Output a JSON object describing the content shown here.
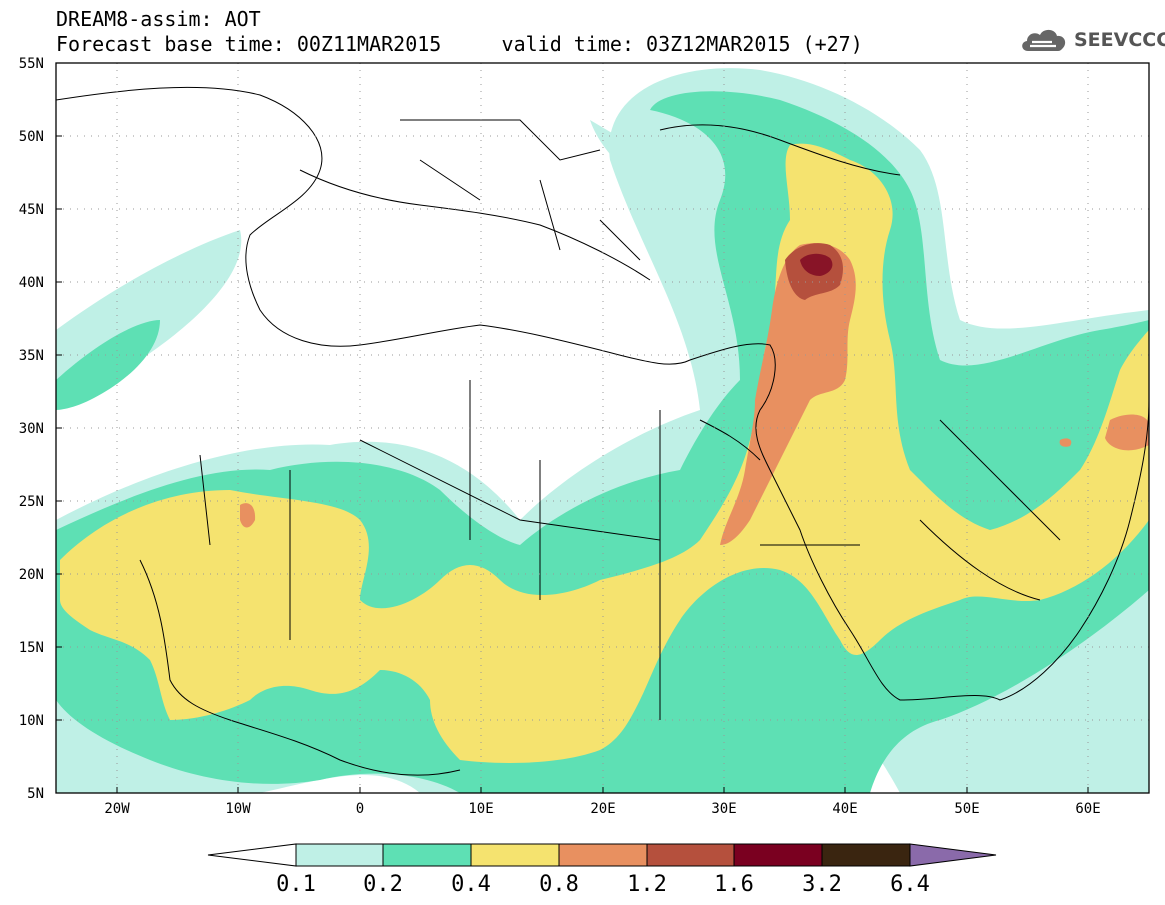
{
  "header": {
    "model_line": "DREAM8-assim: AOT",
    "base_time": "Forecast base time: 00Z11MAR2015",
    "valid_time": "valid time: 03Z12MAR2015 (+27)",
    "logo_text": "SEEVCCC",
    "logo_icon": "cloud-logo-icon"
  },
  "map": {
    "lat_labels": [
      "55N",
      "50N",
      "45N",
      "40N",
      "35N",
      "30N",
      "25N",
      "20N",
      "15N",
      "10N",
      "5N"
    ],
    "lon_labels": [
      "20W",
      "10W",
      "0",
      "10E",
      "20E",
      "30E",
      "40E",
      "50E",
      "60E"
    ],
    "lat_range": [
      5,
      55
    ],
    "lon_range": [
      -25,
      65
    ],
    "grid": "dotted"
  },
  "colorbar": {
    "labels": [
      "0.1",
      "0.2",
      "0.4",
      "0.8",
      "1.2",
      "1.6",
      "3.2",
      "6.4"
    ],
    "colors": [
      "#ffffff",
      "#bff0e6",
      "#5ee0b4",
      "#f5e36f",
      "#e89060",
      "#b5503d",
      "#7a0020",
      "#3a2510",
      "#8a6aaa"
    ],
    "levels": [
      {
        "min": 0.1,
        "max": 0.2,
        "color": "#bff0e6"
      },
      {
        "min": 0.2,
        "max": 0.4,
        "color": "#5ee0b4"
      },
      {
        "min": 0.4,
        "max": 0.8,
        "color": "#f5e36f"
      },
      {
        "min": 0.8,
        "max": 1.2,
        "color": "#e89060"
      },
      {
        "min": 1.2,
        "max": 1.6,
        "color": "#b5503d"
      },
      {
        "min": 1.6,
        "max": 3.2,
        "color": "#7a0020"
      },
      {
        "min": 3.2,
        "max": 6.4,
        "color": "#3a2510"
      }
    ]
  }
}
